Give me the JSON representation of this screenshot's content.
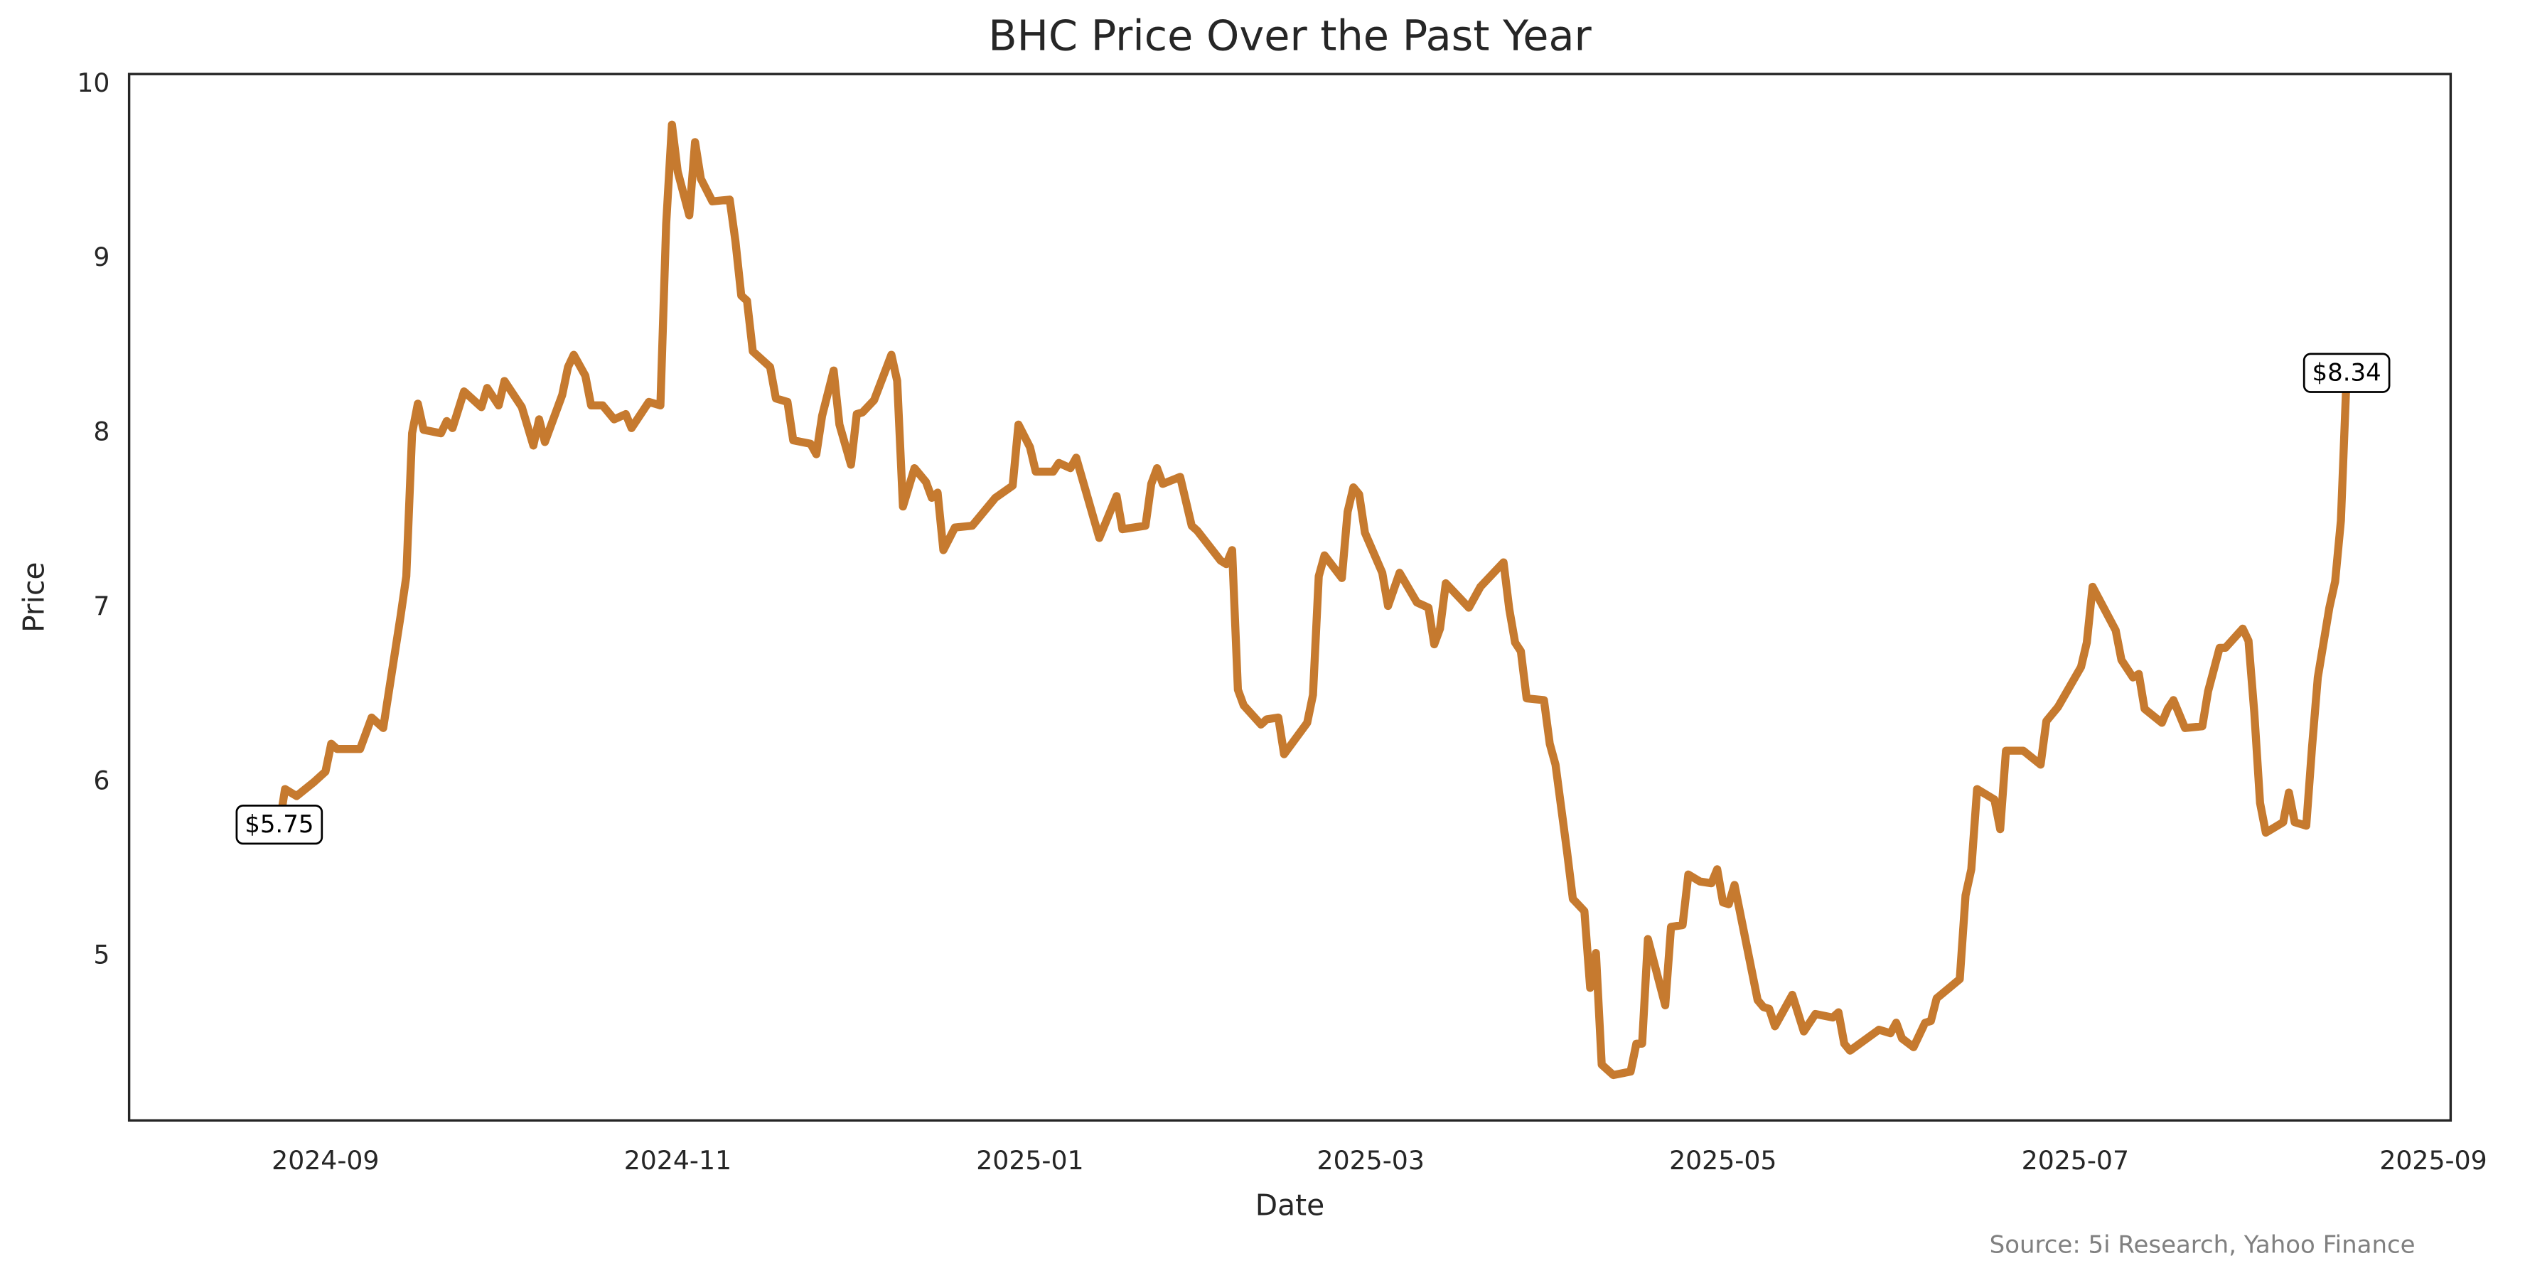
{
  "chart_data": {
    "type": "line",
    "title": "BHC Price Over the Past Year",
    "xlabel": "Date",
    "ylabel": "Price",
    "source": "Source: 5i Research, Yahoo Finance",
    "color": "#c67a2f",
    "x": [
      "2024-08-24",
      "2024-08-25",
      "2024-08-27",
      "2024-08-30",
      "2024-09-01",
      "2024-09-02",
      "2024-09-03",
      "2024-09-07",
      "2024-09-09",
      "2024-09-11",
      "2024-09-14",
      "2024-09-15",
      "2024-09-16",
      "2024-09-17",
      "2024-09-18",
      "2024-09-21",
      "2024-09-22",
      "2024-09-23",
      "2024-09-25",
      "2024-09-28",
      "2024-09-29",
      "2024-10-01",
      "2024-10-02",
      "2024-10-05",
      "2024-10-07",
      "2024-10-08",
      "2024-10-09",
      "2024-10-12",
      "2024-10-13",
      "2024-10-14",
      "2024-10-16",
      "2024-10-17",
      "2024-10-19",
      "2024-10-21",
      "2024-10-23",
      "2024-10-24",
      "2024-10-27",
      "2024-10-29",
      "2024-10-30",
      "2024-10-31",
      "2024-11-01",
      "2024-11-03",
      "2024-11-04",
      "2024-11-05",
      "2024-11-07",
      "2024-11-10",
      "2024-11-11",
      "2024-11-12",
      "2024-11-13",
      "2024-11-14",
      "2024-11-17",
      "2024-11-18",
      "2024-11-20",
      "2024-11-21",
      "2024-11-24",
      "2024-11-25",
      "2024-11-26",
      "2024-11-28",
      "2024-11-29",
      "2024-12-01",
      "2024-12-02",
      "2024-12-03",
      "2024-12-05",
      "2024-12-08",
      "2024-12-09",
      "2024-12-10",
      "2024-12-12",
      "2024-12-14",
      "2024-12-15",
      "2024-12-16",
      "2024-12-17",
      "2024-12-19",
      "2024-12-22",
      "2024-12-26",
      "2024-12-29",
      "2024-12-30",
      "2025-01-01",
      "2025-01-02",
      "2025-01-05",
      "2025-01-06",
      "2025-01-08",
      "2025-01-09",
      "2025-01-13",
      "2025-01-16",
      "2025-01-17",
      "2025-01-21",
      "2025-01-22",
      "2025-01-23",
      "2025-01-24",
      "2025-01-27",
      "2025-01-29",
      "2025-01-30",
      "2025-02-03",
      "2025-02-04",
      "2025-02-05",
      "2025-02-06",
      "2025-02-07",
      "2025-02-10",
      "2025-02-11",
      "2025-02-13",
      "2025-02-14",
      "2025-02-18",
      "2025-02-19",
      "2025-02-20",
      "2025-02-21",
      "2025-02-24",
      "2025-02-25",
      "2025-02-26",
      "2025-02-27",
      "2025-02-28",
      "2025-03-03",
      "2025-03-04",
      "2025-03-06",
      "2025-03-09",
      "2025-03-11",
      "2025-03-12",
      "2025-03-13",
      "2025-03-14",
      "2025-03-18",
      "2025-03-20",
      "2025-03-24",
      "2025-03-25",
      "2025-03-26",
      "2025-03-27",
      "2025-03-28",
      "2025-03-31",
      "2025-04-01",
      "2025-04-02",
      "2025-04-04",
      "2025-04-05",
      "2025-04-07",
      "2025-04-08",
      "2025-04-09",
      "2025-04-10",
      "2025-04-12",
      "2025-04-15",
      "2025-04-16",
      "2025-04-17",
      "2025-04-18",
      "2025-04-21",
      "2025-04-22",
      "2025-04-24",
      "2025-04-25",
      "2025-04-27",
      "2025-04-29",
      "2025-04-30",
      "2025-05-01",
      "2025-05-02",
      "2025-05-03",
      "2025-05-07",
      "2025-05-08",
      "2025-05-09",
      "2025-05-10",
      "2025-05-13",
      "2025-05-15",
      "2025-05-17",
      "2025-05-20",
      "2025-05-21",
      "2025-05-22",
      "2025-05-23",
      "2025-05-28",
      "2025-05-30",
      "2025-05-31",
      "2025-06-01",
      "2025-06-03",
      "2025-06-05",
      "2025-06-06",
      "2025-06-07",
      "2025-06-11",
      "2025-06-12",
      "2025-06-13",
      "2025-06-14",
      "2025-06-17",
      "2025-06-18",
      "2025-06-19",
      "2025-06-22",
      "2025-06-25",
      "2025-06-26",
      "2025-06-28",
      "2025-07-02",
      "2025-07-03",
      "2025-07-04",
      "2025-07-08",
      "2025-07-09",
      "2025-07-11",
      "2025-07-12",
      "2025-07-13",
      "2025-07-16",
      "2025-07-17",
      "2025-07-18",
      "2025-07-20",
      "2025-07-23",
      "2025-07-24",
      "2025-07-26",
      "2025-07-27",
      "2025-07-30",
      "2025-07-31",
      "2025-08-01",
      "2025-08-02",
      "2025-08-03",
      "2025-08-06",
      "2025-08-07",
      "2025-08-08",
      "2025-08-10",
      "2025-08-11",
      "2025-08-12",
      "2025-08-14",
      "2025-08-15",
      "2025-08-16",
      "2025-08-17"
    ],
    "values": [
      5.75,
      5.96,
      5.92,
      6.0,
      6.06,
      6.22,
      6.19,
      6.19,
      6.37,
      6.31,
      6.95,
      7.18,
      8.0,
      8.17,
      8.02,
      8.0,
      8.07,
      8.03,
      8.24,
      8.15,
      8.26,
      8.16,
      8.3,
      8.15,
      7.93,
      8.08,
      7.95,
      8.22,
      8.38,
      8.45,
      8.33,
      8.16,
      8.16,
      8.08,
      8.11,
      8.03,
      8.18,
      8.16,
      9.2,
      9.77,
      9.5,
      9.25,
      9.67,
      9.46,
      9.33,
      9.34,
      9.1,
      8.79,
      8.76,
      8.47,
      8.38,
      8.2,
      8.18,
      7.96,
      7.94,
      7.88,
      8.1,
      8.36,
      8.05,
      7.82,
      8.11,
      8.12,
      8.19,
      8.45,
      8.3,
      7.58,
      7.8,
      7.72,
      7.63,
      7.66,
      7.33,
      7.46,
      7.47,
      7.63,
      7.7,
      8.05,
      7.92,
      7.78,
      7.78,
      7.83,
      7.8,
      7.86,
      7.4,
      7.64,
      7.45,
      7.47,
      7.71,
      7.8,
      7.71,
      7.75,
      7.47,
      7.44,
      7.27,
      7.25,
      7.33,
      6.53,
      6.44,
      6.33,
      6.36,
      6.37,
      6.16,
      6.34,
      6.5,
      7.18,
      7.3,
      7.17,
      7.55,
      7.69,
      7.65,
      7.43,
      7.2,
      7.01,
      7.2,
      7.03,
      7.0,
      6.79,
      6.88,
      7.14,
      7.0,
      7.12,
      7.26,
      6.99,
      6.8,
      6.75,
      6.48,
      6.47,
      6.22,
      6.1,
      5.6,
      5.33,
      5.26,
      4.82,
      5.02,
      4.38,
      4.32,
      4.34,
      4.5,
      4.5,
      5.1,
      4.72,
      5.17,
      5.18,
      5.47,
      5.43,
      5.42,
      5.5,
      5.31,
      5.3,
      5.41,
      4.75,
      4.71,
      4.7,
      4.6,
      4.78,
      4.57,
      4.67,
      4.65,
      4.68,
      4.5,
      4.46,
      4.58,
      4.56,
      4.62,
      4.53,
      4.48,
      4.62,
      4.63,
      4.76,
      4.87,
      5.35,
      5.5,
      5.96,
      5.9,
      5.73,
      6.18,
      6.18,
      6.1,
      6.35,
      6.43,
      6.66,
      6.8,
      7.12,
      6.87,
      6.7,
      6.6,
      6.62,
      6.42,
      6.34,
      6.42,
      6.47,
      6.31,
      6.32,
      6.52,
      6.77,
      6.77,
      6.88,
      6.81,
      6.4,
      5.88,
      5.71,
      5.77,
      5.94,
      5.77,
      5.75,
      6.2,
      6.6,
      7.0,
      7.15,
      7.5,
      8.34
    ],
    "annotations": [
      {
        "x": "2024-08-24",
        "y": 5.75,
        "label": "$5.75"
      },
      {
        "x": "2025-08-17",
        "y": 8.34,
        "label": "$8.34"
      }
    ],
    "xlim": [
      "2024-07-29",
      "2025-09-04"
    ],
    "xticks": [
      "2024-09",
      "2024-11",
      "2025-01",
      "2025-03",
      "2025-05",
      "2025-07",
      "2025-09"
    ],
    "ylim": [
      4.06,
      10.06
    ],
    "yticks": [
      5,
      6,
      7,
      8,
      9,
      10
    ],
    "grid": false
  }
}
